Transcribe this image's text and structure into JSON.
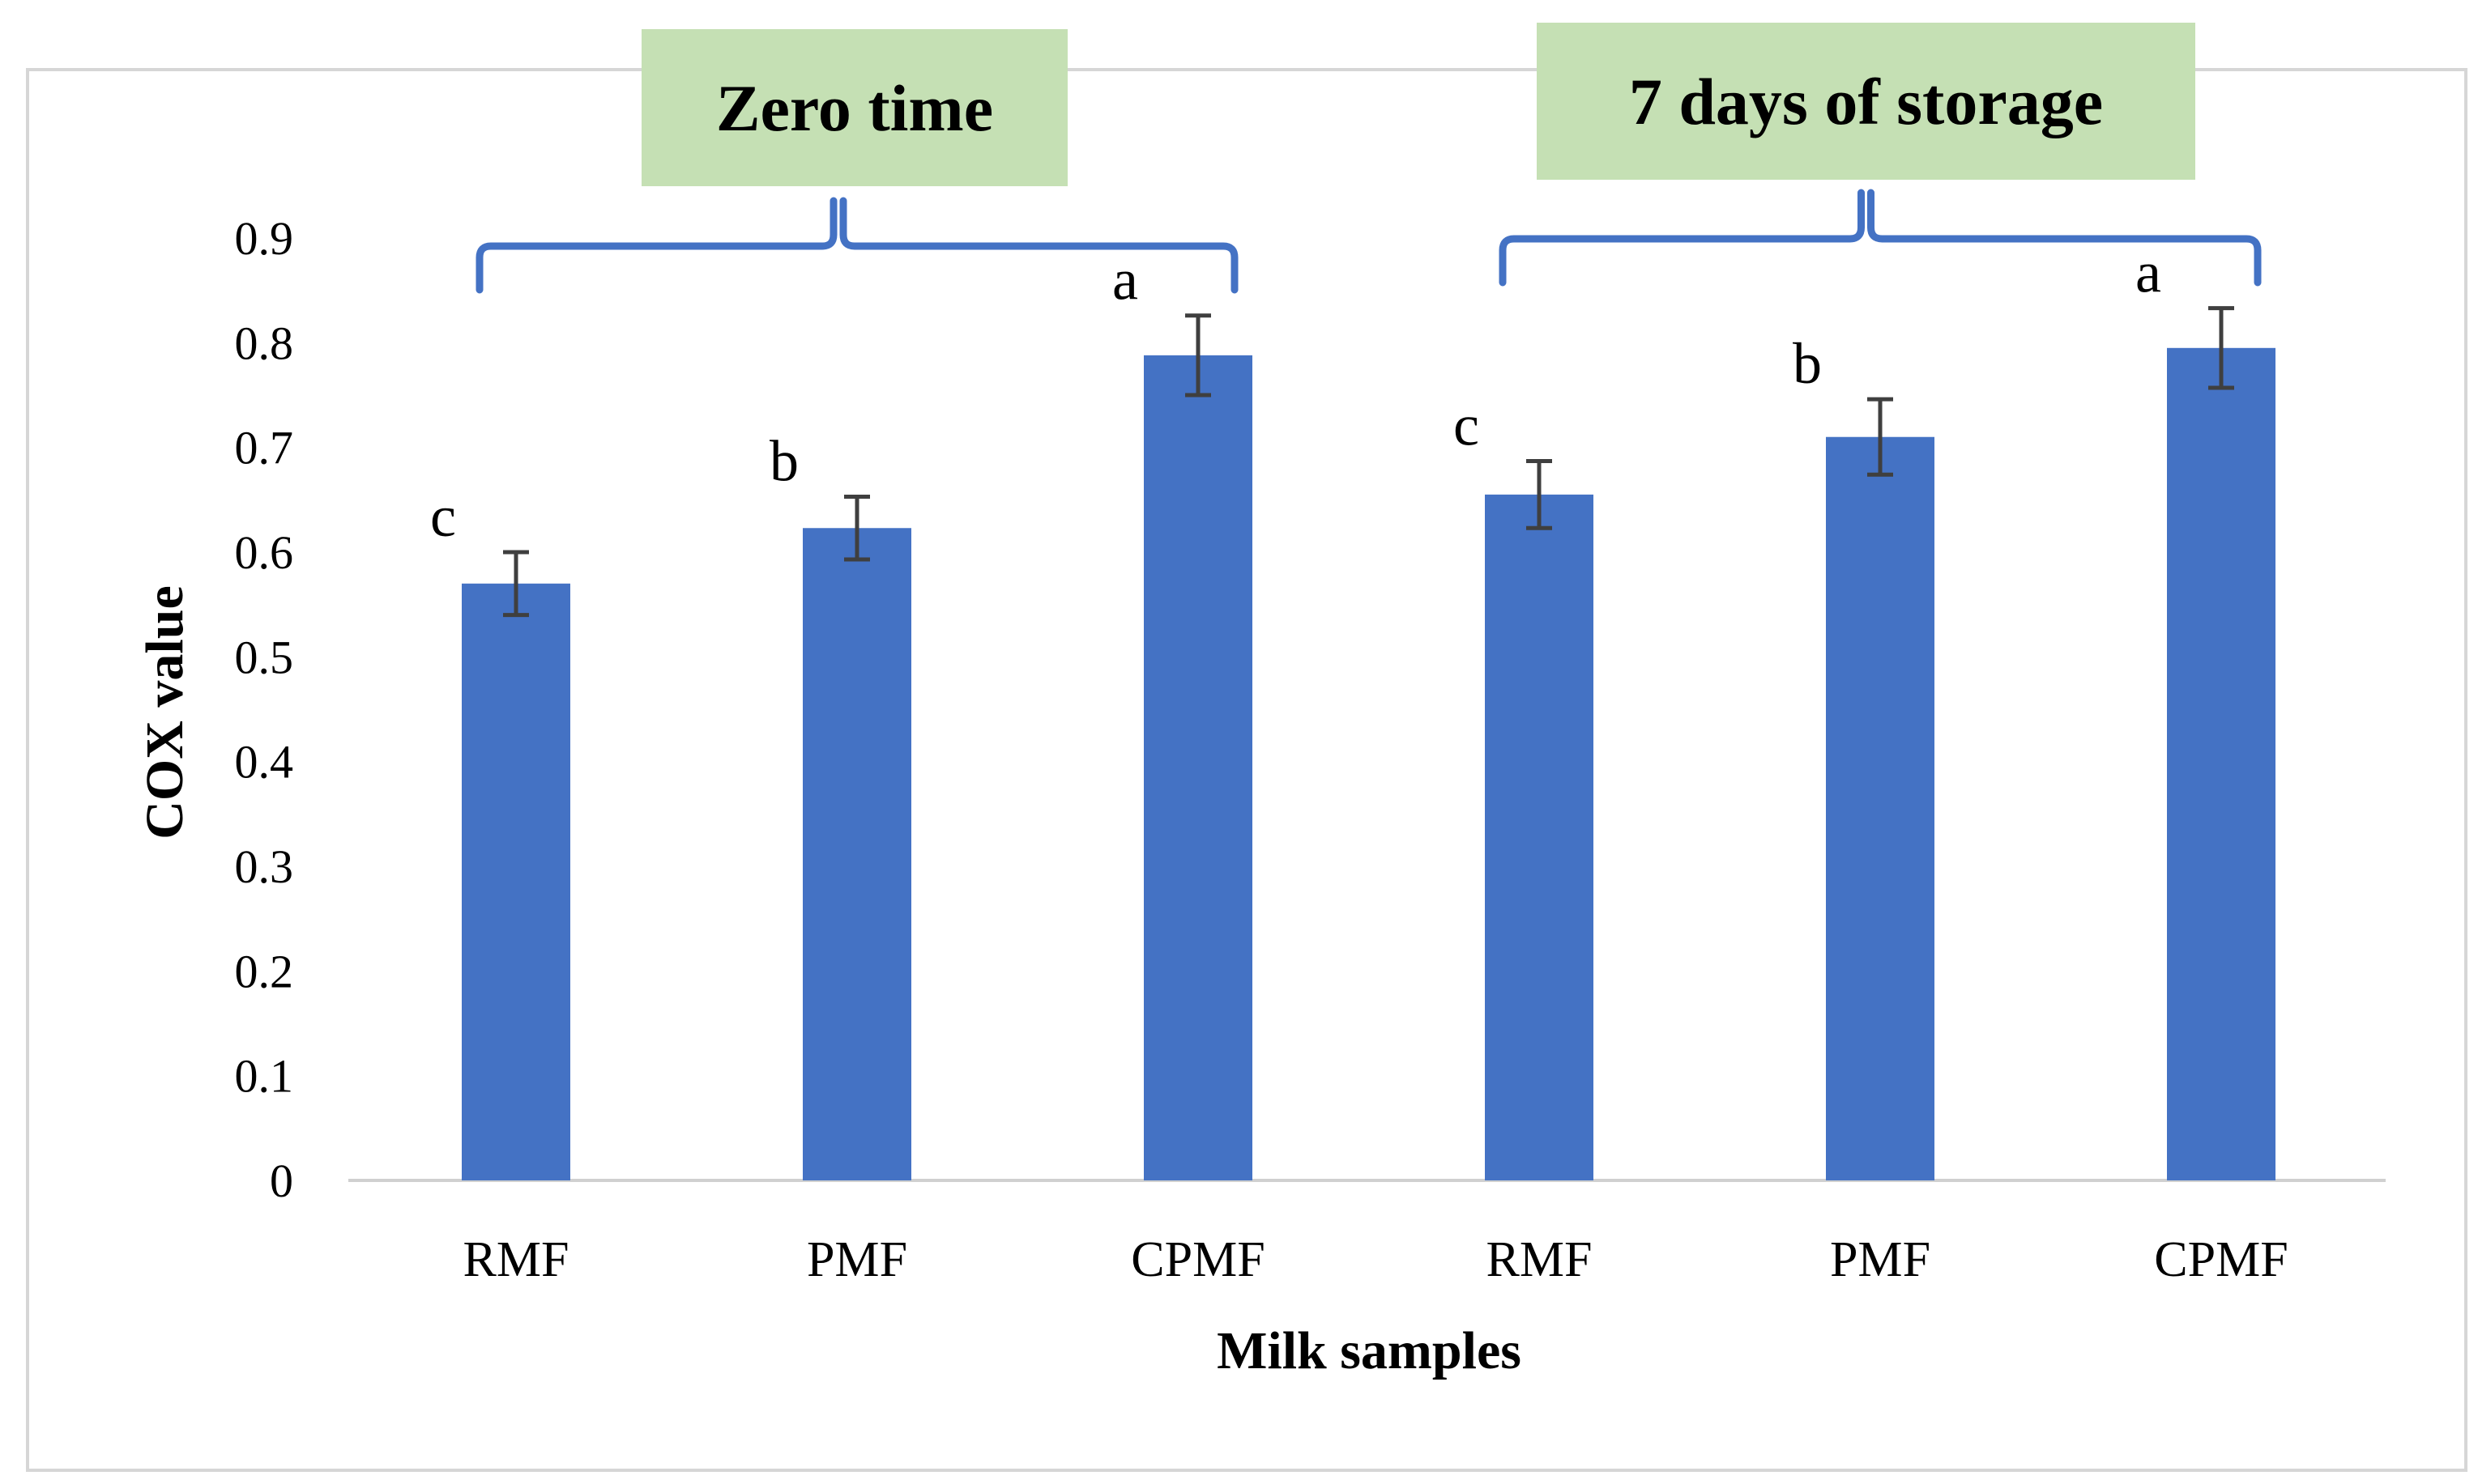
{
  "chart_data": {
    "type": "bar",
    "title": "",
    "xlabel": "Milk samples",
    "ylabel": "COX value",
    "ylim": [
      0,
      0.9
    ],
    "yticks": [
      "0",
      "0.1",
      "0.2",
      "0.3",
      "0.4",
      "0.5",
      "0.6",
      "0.7",
      "0.8",
      "0.9"
    ],
    "categories": [
      "RMF",
      "PMF",
      "CPMF",
      "RMF",
      "PMF",
      "CPMF"
    ],
    "values": [
      0.57,
      0.623,
      0.788,
      0.655,
      0.71,
      0.795
    ],
    "errors": [
      0.03,
      0.03,
      0.038,
      0.032,
      0.036,
      0.038
    ],
    "significance_letters": [
      "c",
      "b",
      "a",
      "c",
      "b",
      "a"
    ],
    "groups": [
      {
        "label": "Zero time",
        "start_index": 0,
        "end_index": 2
      },
      {
        "label": "7 days of storage",
        "start_index": 3,
        "end_index": 5
      }
    ],
    "colors": {
      "bar": "#4472C4",
      "error_bar": "#3f3f3f",
      "bracket": "#4472C4",
      "label_box": "#C5E0B4",
      "axis": "#d0d0d0",
      "frame": "#d6d6d6"
    }
  }
}
